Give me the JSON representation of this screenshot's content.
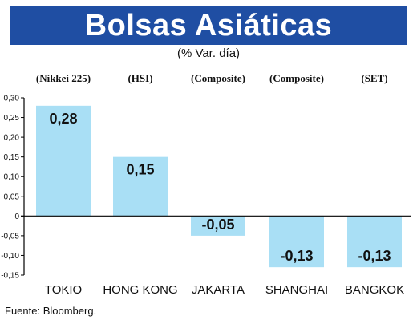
{
  "title": "Bolsas Asiáticas",
  "subtitle": "(% Var. día)",
  "source": "Fuente: Bloomberg.",
  "colors": {
    "title_bg": "#1f4ea3",
    "bar": "#a9dff5",
    "text": "#111111"
  },
  "chart_data": {
    "type": "bar",
    "categories": [
      "TOKIO",
      "HONG KONG",
      "JAKARTA",
      "SHANGHAI",
      "BANGKOK"
    ],
    "index_names": [
      "(Nikkei 225)",
      "(HSI)",
      "(Composite)",
      "(Composite)",
      "(SET)"
    ],
    "values": [
      0.28,
      0.15,
      -0.05,
      -0.13,
      -0.13
    ],
    "value_labels": [
      "0,28",
      "0,15",
      "-0,05",
      "-0,13",
      "-0,13"
    ],
    "ylim": [
      -0.15,
      0.3
    ],
    "yticks": [
      0.3,
      0.25,
      0.2,
      0.15,
      0.1,
      0.05,
      0,
      -0.05,
      -0.1,
      -0.15
    ],
    "ytick_labels": [
      "0,30",
      "0,25",
      "0,20",
      "0,15",
      "0,10",
      "0,05",
      "0",
      "-0,05",
      "-0,10",
      "-0,15"
    ],
    "grid": false,
    "legend": "none"
  }
}
